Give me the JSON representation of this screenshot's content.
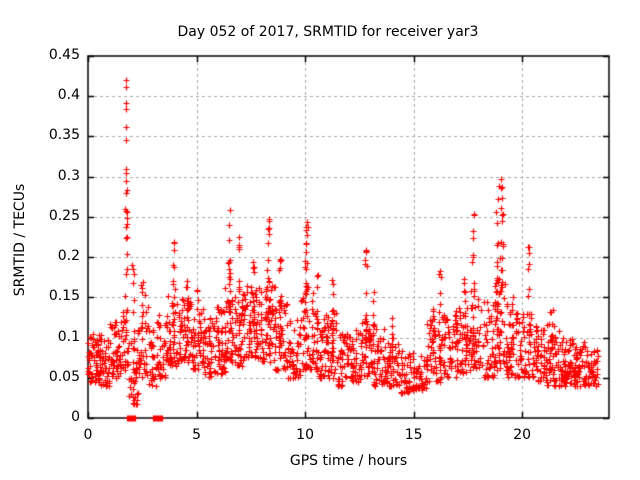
{
  "figure": {
    "background": "#ffffff",
    "frame_color": "#000000"
  },
  "chart_data": {
    "type": "scatter",
    "title": "Day 052 of 2017, SRMTID for receiver yar3",
    "xlabel": "GPS time / hours",
    "ylabel": "SRMTID / TECUs",
    "xlim": [
      0,
      24
    ],
    "ylim": [
      0,
      0.45
    ],
    "xticks": [
      0,
      5,
      10,
      15,
      20
    ],
    "yticks": [
      0,
      0.05,
      0.1,
      0.15,
      0.2,
      0.25,
      0.3,
      0.35,
      0.4,
      0.45
    ],
    "grid": true,
    "grid_style": "dashed",
    "grid_color": "#a8a8a8",
    "legend": "none",
    "marker": "plus",
    "marker_color": "#ff0000",
    "seed": 52,
    "baseline_bins": [
      [
        0.0,
        0.5,
        0.045,
        0.115,
        55
      ],
      [
        0.5,
        1.0,
        0.04,
        0.105,
        55
      ],
      [
        1.0,
        1.5,
        0.05,
        0.12,
        50
      ],
      [
        1.5,
        1.9,
        0.06,
        0.135,
        30
      ],
      [
        1.9,
        2.3,
        0.015,
        0.1,
        32
      ],
      [
        2.3,
        2.75,
        0.05,
        0.155,
        30
      ],
      [
        2.75,
        3.15,
        0.04,
        0.115,
        28
      ],
      [
        3.15,
        3.6,
        0.05,
        0.13,
        34
      ],
      [
        3.6,
        4.2,
        0.065,
        0.165,
        48
      ],
      [
        4.2,
        4.8,
        0.07,
        0.16,
        48
      ],
      [
        4.8,
        5.3,
        0.06,
        0.135,
        40
      ],
      [
        5.3,
        5.8,
        0.05,
        0.125,
        40
      ],
      [
        5.8,
        6.3,
        0.055,
        0.135,
        45
      ],
      [
        6.3,
        6.8,
        0.07,
        0.175,
        46
      ],
      [
        6.8,
        7.3,
        0.065,
        0.155,
        45
      ],
      [
        7.3,
        8.0,
        0.075,
        0.165,
        62
      ],
      [
        8.0,
        8.6,
        0.07,
        0.17,
        52
      ],
      [
        8.6,
        9.2,
        0.06,
        0.145,
        50
      ],
      [
        9.2,
        9.8,
        0.05,
        0.125,
        45
      ],
      [
        9.8,
        10.4,
        0.06,
        0.165,
        50
      ],
      [
        10.4,
        11.0,
        0.05,
        0.135,
        48
      ],
      [
        11.0,
        11.5,
        0.05,
        0.14,
        40
      ],
      [
        11.5,
        12.1,
        0.04,
        0.105,
        46
      ],
      [
        12.1,
        12.6,
        0.045,
        0.11,
        44
      ],
      [
        12.6,
        13.1,
        0.05,
        0.13,
        44
      ],
      [
        13.1,
        13.7,
        0.04,
        0.115,
        46
      ],
      [
        13.7,
        14.3,
        0.04,
        0.1,
        44
      ],
      [
        14.3,
        15.0,
        0.03,
        0.085,
        46
      ],
      [
        15.0,
        15.6,
        0.035,
        0.085,
        44
      ],
      [
        15.6,
        16.3,
        0.045,
        0.125,
        50
      ],
      [
        16.3,
        17.0,
        0.05,
        0.13,
        50
      ],
      [
        17.0,
        17.6,
        0.055,
        0.14,
        46
      ],
      [
        17.6,
        18.2,
        0.06,
        0.16,
        46
      ],
      [
        18.2,
        18.7,
        0.05,
        0.145,
        40
      ],
      [
        18.7,
        19.3,
        0.06,
        0.175,
        55
      ],
      [
        19.3,
        19.9,
        0.05,
        0.135,
        45
      ],
      [
        19.9,
        20.5,
        0.05,
        0.13,
        45
      ],
      [
        20.5,
        21.1,
        0.045,
        0.115,
        50
      ],
      [
        21.1,
        21.7,
        0.04,
        0.12,
        55
      ],
      [
        21.7,
        22.3,
        0.04,
        0.1,
        56
      ],
      [
        22.3,
        22.9,
        0.04,
        0.095,
        55
      ],
      [
        22.9,
        23.5,
        0.04,
        0.085,
        48
      ]
    ],
    "burst_columns": [
      [
        1.76,
        0.05,
        0.1,
        0.31,
        14
      ],
      [
        2.1,
        0.06,
        0.03,
        0.19,
        10
      ],
      [
        2.5,
        0.07,
        0.1,
        0.175,
        10
      ],
      [
        3.95,
        0.07,
        0.1,
        0.22,
        16
      ],
      [
        4.55,
        0.08,
        0.1,
        0.175,
        14
      ],
      [
        5.05,
        0.06,
        0.09,
        0.16,
        10
      ],
      [
        6.0,
        0.06,
        0.08,
        0.145,
        8
      ],
      [
        6.5,
        0.05,
        0.1,
        0.255,
        16
      ],
      [
        6.95,
        0.05,
        0.1,
        0.225,
        12
      ],
      [
        7.6,
        0.09,
        0.1,
        0.2,
        14
      ],
      [
        8.3,
        0.06,
        0.1,
        0.245,
        16
      ],
      [
        8.85,
        0.06,
        0.09,
        0.2,
        12
      ],
      [
        10.05,
        0.07,
        0.1,
        0.245,
        18
      ],
      [
        10.55,
        0.05,
        0.09,
        0.185,
        10
      ],
      [
        11.25,
        0.07,
        0.08,
        0.175,
        12
      ],
      [
        12.8,
        0.06,
        0.09,
        0.21,
        12
      ],
      [
        13.15,
        0.05,
        0.08,
        0.16,
        8
      ],
      [
        14.0,
        0.05,
        0.07,
        0.125,
        8
      ],
      [
        15.9,
        0.06,
        0.07,
        0.145,
        8
      ],
      [
        16.2,
        0.05,
        0.08,
        0.185,
        10
      ],
      [
        16.95,
        0.05,
        0.08,
        0.17,
        8
      ],
      [
        17.35,
        0.05,
        0.08,
        0.18,
        8
      ],
      [
        17.75,
        0.05,
        0.09,
        0.255,
        14
      ],
      [
        18.85,
        0.09,
        0.1,
        0.275,
        18
      ],
      [
        19.05,
        0.07,
        0.12,
        0.295,
        16
      ],
      [
        19.55,
        0.05,
        0.08,
        0.17,
        8
      ],
      [
        20.3,
        0.06,
        0.08,
        0.215,
        12
      ],
      [
        21.35,
        0.06,
        0.06,
        0.155,
        8
      ]
    ],
    "peak_points": [
      [
        1.74,
        0.42
      ],
      [
        1.76,
        0.411
      ],
      [
        1.75,
        0.392
      ],
      [
        1.77,
        0.384
      ],
      [
        1.76,
        0.362
      ],
      [
        1.75,
        0.345
      ],
      [
        1.74,
        0.31
      ],
      [
        1.77,
        0.305
      ],
      [
        1.76,
        0.257
      ],
      [
        1.78,
        0.249
      ],
      [
        1.8,
        0.225
      ],
      [
        2.02,
        0.19
      ],
      [
        3.97,
        0.219
      ],
      [
        6.52,
        0.258
      ],
      [
        8.32,
        0.247
      ],
      [
        10.08,
        0.244
      ],
      [
        10.12,
        0.237
      ],
      [
        12.82,
        0.208
      ],
      [
        17.78,
        0.252
      ],
      [
        18.9,
        0.272
      ],
      [
        18.95,
        0.289
      ],
      [
        19.02,
        0.297
      ],
      [
        19.08,
        0.287
      ],
      [
        20.28,
        0.212
      ]
    ],
    "zero_value_runs": [
      [
        1.78,
        2.18,
        22
      ],
      [
        3.0,
        3.17,
        9
      ],
      [
        3.22,
        3.4,
        9
      ]
    ]
  }
}
